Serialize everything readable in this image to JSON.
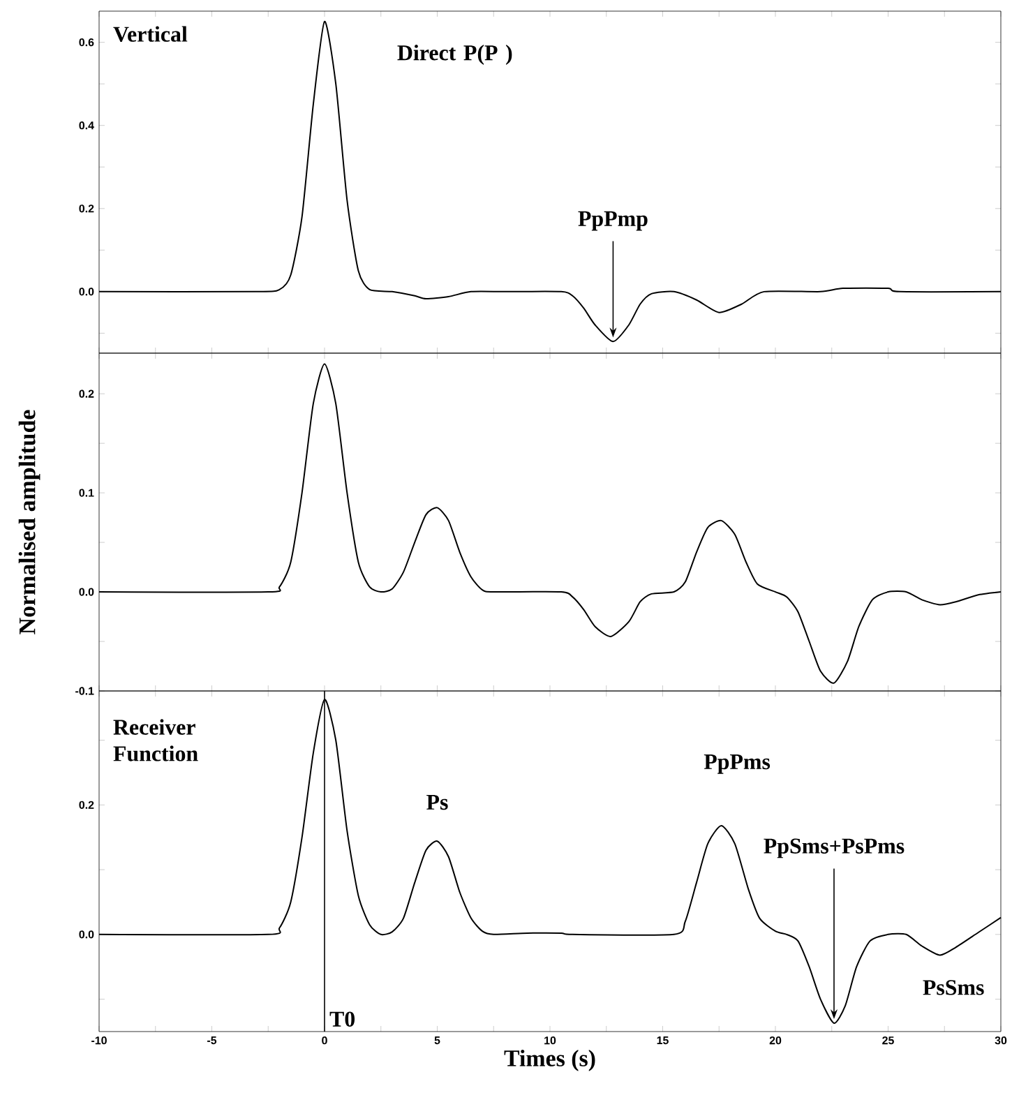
{
  "chart_data": [
    {
      "type": "line",
      "xlim": [
        -10,
        30
      ],
      "ylim": [
        -0.148,
        0.675
      ],
      "tick_labels": "y",
      "xticks": [
        -10,
        {
          "value": -7.5,
          "label": null
        },
        -5,
        {
          "value": -2.5,
          "label": null
        },
        0,
        {
          "value": 2.5,
          "label": null
        },
        5,
        {
          "value": 7.5,
          "label": null
        },
        10,
        {
          "value": 12.5,
          "label": null
        },
        15,
        {
          "value": 17.5,
          "label": null
        },
        20,
        {
          "value": 22.5,
          "label": null
        },
        25,
        {
          "value": 27.5,
          "label": null
        },
        30
      ],
      "yticks": [
        {
          "value": -0.1,
          "label": null
        },
        {
          "value": 0,
          "label": "0.0"
        },
        {
          "value": 0.1,
          "label": null
        },
        {
          "value": 0.2,
          "label": "0.2"
        },
        {
          "value": 0.3,
          "label": null
        },
        {
          "value": 0.4,
          "label": "0.4"
        },
        {
          "value": 0.5,
          "label": null
        },
        {
          "value": 0.6,
          "label": "0.6"
        }
      ],
      "series": [
        {
          "color": "#000000",
          "x": [
            -10,
            -3,
            -2,
            -1.5,
            -1,
            -0.5,
            0,
            0.5,
            1,
            1.5,
            2,
            3,
            4,
            4.5,
            5.5,
            6.5,
            8,
            10.5,
            11,
            11.5,
            12,
            12.8,
            13.5,
            14,
            14.5,
            15.5,
            16.5,
            17.5,
            18.5,
            19.5,
            22,
            23,
            25,
            25.5,
            30
          ],
          "values": [
            0,
            0,
            0.005,
            0.04,
            0.18,
            0.45,
            0.65,
            0.5,
            0.22,
            0.05,
            0.005,
            0,
            -0.01,
            -0.017,
            -0.012,
            0,
            0,
            0,
            -0.01,
            -0.04,
            -0.08,
            -0.12,
            -0.08,
            -0.03,
            -0.005,
            0,
            -0.02,
            -0.05,
            -0.03,
            0,
            0,
            0.008,
            0.008,
            0,
            0
          ]
        }
      ],
      "annotations": [
        "Vertical",
        "Direct P(P )",
        {
          "text": "PpPmp",
          "x": 12.8,
          "y": -0.12
        }
      ]
    },
    {
      "type": "line",
      "xlim": [
        -10,
        30
      ],
      "ylim": [
        -0.1,
        0.241
      ],
      "tick_labels": "y",
      "ylabel": "Normalised amplitude",
      "xticks": [
        -10,
        {
          "value": -7.5,
          "label": null
        },
        -5,
        {
          "value": -2.5,
          "label": null
        },
        0,
        {
          "value": 2.5,
          "label": null
        },
        5,
        {
          "value": 7.5,
          "label": null
        },
        10,
        {
          "value": 12.5,
          "label": null
        },
        15,
        {
          "value": 17.5,
          "label": null
        },
        20,
        {
          "value": 22.5,
          "label": null
        },
        25,
        {
          "value": 27.5,
          "label": null
        },
        30
      ],
      "yticks": [
        {
          "value": -0.1,
          "label": "-0.1"
        },
        {
          "value": -0.05,
          "label": null
        },
        {
          "value": 0,
          "label": "0.0"
        },
        {
          "value": 0.05,
          "label": null
        },
        {
          "value": 0.1,
          "label": "0.1"
        },
        {
          "value": 0.15,
          "label": null
        },
        {
          "value": 0.2,
          "label": "0.2"
        }
      ],
      "series": [
        {
          "color": "#000000",
          "x": [
            -10,
            -2.5,
            -2,
            -1.5,
            -1,
            -0.5,
            0,
            0.5,
            1,
            1.5,
            2,
            2.5,
            3,
            3.5,
            4,
            4.5,
            5,
            5.5,
            6,
            6.5,
            7,
            7.5,
            10.5,
            11,
            11.5,
            12,
            12.7,
            13.5,
            14,
            14.5,
            15.5,
            16,
            16.5,
            17,
            17.6,
            18.2,
            18.7,
            19.2,
            20,
            20.5,
            21,
            21.5,
            22,
            22.6,
            23.2,
            23.7,
            24.3,
            25,
            25.8,
            26.5,
            27.3,
            28,
            29,
            30
          ],
          "values": [
            0,
            0,
            0.005,
            0.03,
            0.1,
            0.19,
            0.23,
            0.19,
            0.1,
            0.03,
            0.005,
            0,
            0.003,
            0.02,
            0.05,
            0.078,
            0.085,
            0.072,
            0.04,
            0.015,
            0.002,
            0,
            0,
            -0.005,
            -0.018,
            -0.035,
            -0.045,
            -0.03,
            -0.01,
            -0.002,
            0,
            0.01,
            0.04,
            0.065,
            0.072,
            0.058,
            0.03,
            0.008,
            0,
            -0.005,
            -0.02,
            -0.05,
            -0.08,
            -0.092,
            -0.07,
            -0.035,
            -0.008,
            0,
            0,
            -0.008,
            -0.013,
            -0.01,
            -0.003,
            0
          ]
        }
      ]
    },
    {
      "type": "line",
      "xlim": [
        -10,
        30
      ],
      "ylim": [
        -0.15,
        0.376
      ],
      "xlabel": "Times (s)",
      "xticks": [
        -10,
        {
          "value": -7.5,
          "label": null
        },
        -5,
        {
          "value": -2.5,
          "label": null
        },
        0,
        {
          "value": 2.5,
          "label": null
        },
        5,
        {
          "value": 7.5,
          "label": null
        },
        10,
        {
          "value": 12.5,
          "label": null
        },
        15,
        {
          "value": 17.5,
          "label": null
        },
        20,
        {
          "value": 22.5,
          "label": null
        },
        25,
        {
          "value": 27.5,
          "label": null
        },
        30
      ],
      "yticks": [
        {
          "value": -0.1,
          "label": null
        },
        {
          "value": 0,
          "label": "0.0"
        },
        {
          "value": 0.1,
          "label": null
        },
        {
          "value": 0.2,
          "label": "0.2"
        },
        {
          "value": 0.3,
          "label": null
        }
      ],
      "series": [
        {
          "color": "#000000",
          "x": [
            -10,
            -2.5,
            -2,
            -1.5,
            -1,
            -0.5,
            0,
            0.5,
            1,
            1.5,
            2,
            2.5,
            3,
            3.5,
            4,
            4.5,
            5,
            5.5,
            6,
            6.5,
            7,
            7.5,
            9,
            10.5,
            11,
            15.5,
            16,
            16.5,
            17,
            17.6,
            18.2,
            18.8,
            19.3,
            20,
            20.5,
            21,
            21.5,
            22,
            22.6,
            23.1,
            23.6,
            24.2,
            25,
            25.8,
            26.5,
            27.3,
            28,
            29,
            30
          ],
          "values": [
            0,
            0,
            0.01,
            0.05,
            0.15,
            0.28,
            0.363,
            0.3,
            0.16,
            0.06,
            0.015,
            0,
            0.004,
            0.025,
            0.08,
            0.13,
            0.144,
            0.12,
            0.065,
            0.025,
            0.005,
            0,
            0.002,
            0.002,
            0,
            0,
            0.02,
            0.08,
            0.14,
            0.168,
            0.14,
            0.07,
            0.025,
            0.005,
            0,
            -0.01,
            -0.05,
            -0.1,
            -0.137,
            -0.11,
            -0.05,
            -0.01,
            0,
            0,
            -0.018,
            -0.032,
            -0.02,
            0.003,
            0.026
          ]
        }
      ],
      "ref_lines": [
        {
          "axis": "x",
          "value": 0,
          "label": "T0",
          "color": "#000000"
        }
      ],
      "annotations": [
        "Receiver Function",
        {
          "text": "Ps",
          "x": 5,
          "y": 0.144
        },
        {
          "text": "PpPms",
          "x": 17.6,
          "y": 0.168
        },
        {
          "text": "PpSms+PsPms",
          "x": 22.6,
          "y": -0.137
        },
        {
          "text": "PsSms",
          "x": 27.3,
          "y": -0.032
        }
      ]
    }
  ]
}
